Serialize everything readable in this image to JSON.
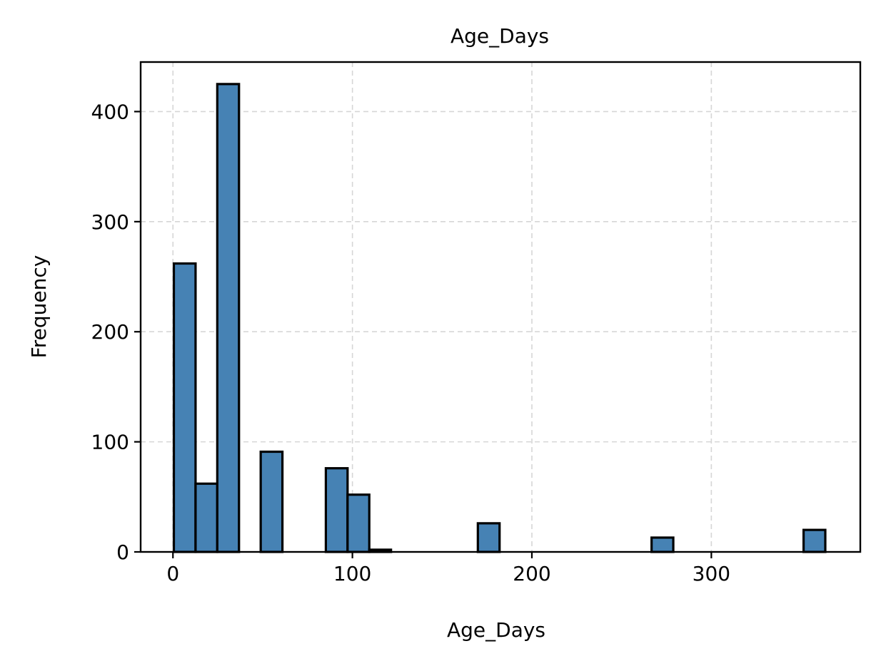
{
  "chart_data": {
    "type": "bar",
    "title": "Age_Days",
    "xlabel": "Age_Days",
    "ylabel": "Frequency",
    "xlim": [
      -18,
      383
    ],
    "ylim": [
      0,
      445
    ],
    "xticks": [
      0,
      100,
      200,
      300
    ],
    "yticks": [
      0,
      100,
      200,
      300,
      400
    ],
    "grid": true,
    "bar_color": "#4682b4",
    "edge_color": "#000000",
    "grid_color": "#d6d6d6",
    "bins": [
      {
        "x0": 0.5,
        "x1": 12.6,
        "count": 262
      },
      {
        "x0": 12.6,
        "x1": 24.7,
        "count": 62
      },
      {
        "x0": 24.7,
        "x1": 36.8,
        "count": 425
      },
      {
        "x0": 36.8,
        "x1": 48.9,
        "count": 0
      },
      {
        "x0": 48.9,
        "x1": 61.0,
        "count": 91
      },
      {
        "x0": 61.0,
        "x1": 73.1,
        "count": 0
      },
      {
        "x0": 73.1,
        "x1": 85.2,
        "count": 0
      },
      {
        "x0": 85.2,
        "x1": 97.3,
        "count": 76
      },
      {
        "x0": 97.3,
        "x1": 109.4,
        "count": 52
      },
      {
        "x0": 109.4,
        "x1": 121.5,
        "count": 2
      },
      {
        "x0": 121.5,
        "x1": 133.6,
        "count": 0
      },
      {
        "x0": 133.6,
        "x1": 145.7,
        "count": 0
      },
      {
        "x0": 145.7,
        "x1": 157.8,
        "count": 0
      },
      {
        "x0": 157.8,
        "x1": 169.9,
        "count": 0
      },
      {
        "x0": 169.9,
        "x1": 182.0,
        "count": 26
      },
      {
        "x0": 182.0,
        "x1": 194.1,
        "count": 0
      },
      {
        "x0": 194.1,
        "x1": 206.2,
        "count": 0
      },
      {
        "x0": 206.2,
        "x1": 218.3,
        "count": 0
      },
      {
        "x0": 218.3,
        "x1": 230.4,
        "count": 0
      },
      {
        "x0": 230.4,
        "x1": 242.5,
        "count": 0
      },
      {
        "x0": 242.5,
        "x1": 254.6,
        "count": 0
      },
      {
        "x0": 254.6,
        "x1": 266.7,
        "count": 0
      },
      {
        "x0": 266.7,
        "x1": 278.8,
        "count": 13
      },
      {
        "x0": 278.8,
        "x1": 290.9,
        "count": 0
      },
      {
        "x0": 290.9,
        "x1": 303.0,
        "count": 0
      },
      {
        "x0": 303.0,
        "x1": 315.1,
        "count": 0
      },
      {
        "x0": 315.1,
        "x1": 327.2,
        "count": 0
      },
      {
        "x0": 327.2,
        "x1": 339.3,
        "count": 0
      },
      {
        "x0": 339.3,
        "x1": 351.4,
        "count": 0
      },
      {
        "x0": 351.4,
        "x1": 363.5,
        "count": 20
      }
    ]
  }
}
